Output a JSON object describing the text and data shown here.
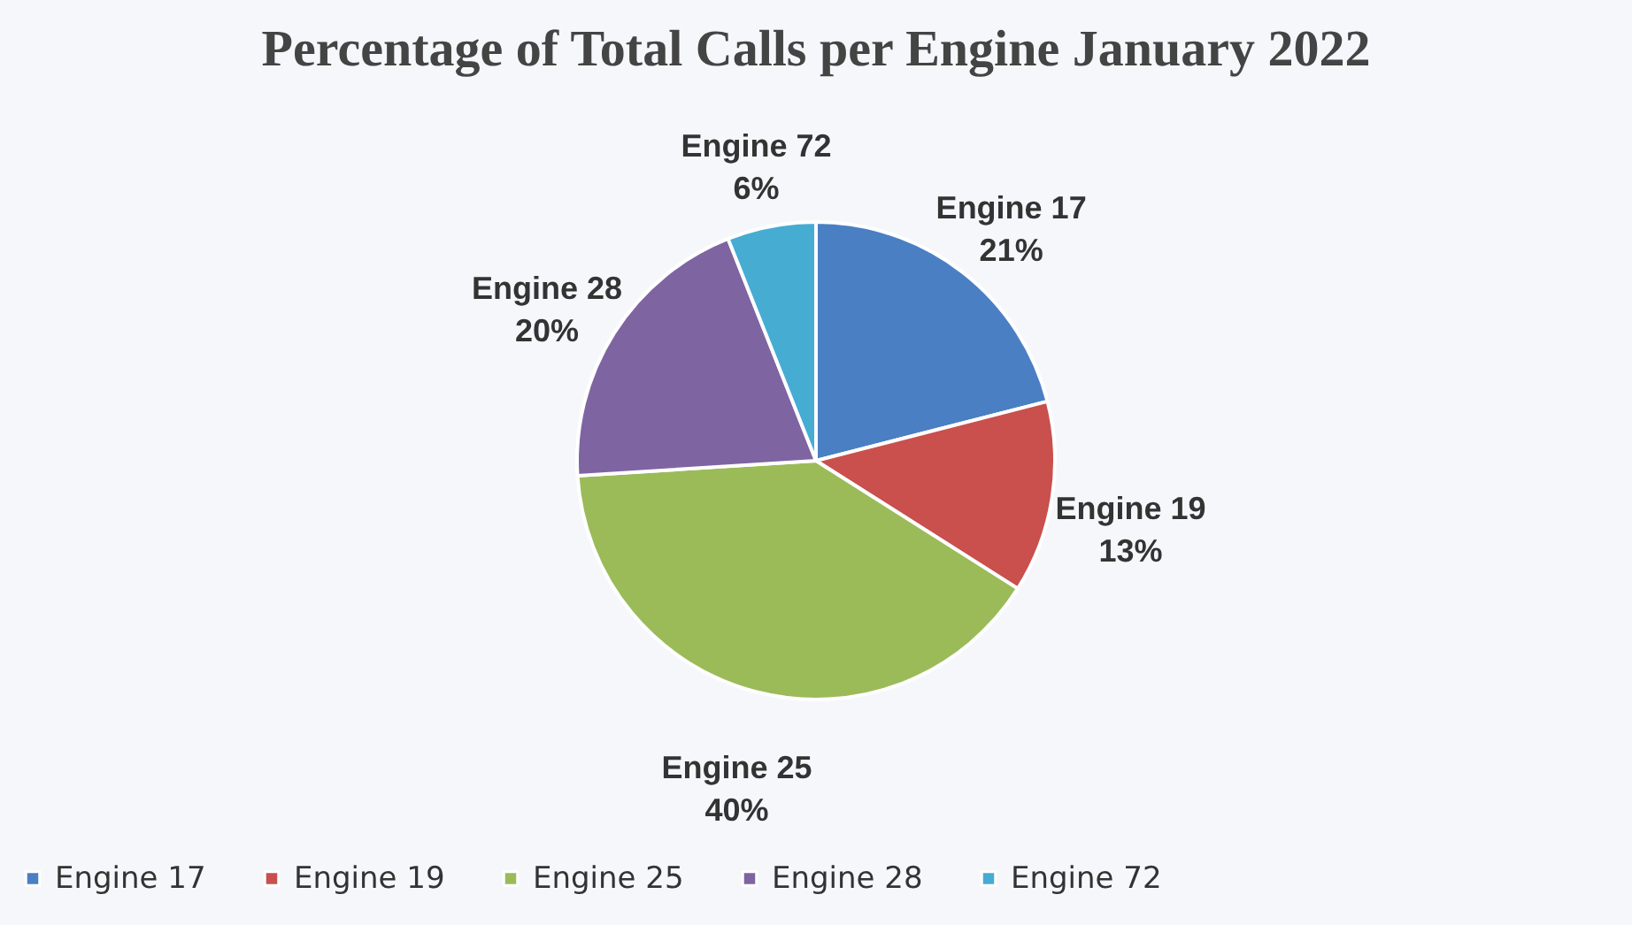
{
  "chart_data": {
    "type": "pie",
    "title": "Percentage of Total Calls per Engine January 2022",
    "categories": [
      "Engine 17",
      "Engine 19",
      "Engine 25",
      "Engine 28",
      "Engine 72"
    ],
    "values": [
      21,
      13,
      40,
      20,
      6
    ],
    "value_labels": [
      "21%",
      "13%",
      "40%",
      "20%",
      "6%"
    ],
    "colors": [
      "#4a7fc4",
      "#c9504d",
      "#9bbb59",
      "#7f64a2",
      "#46acd2"
    ],
    "legend": "bottom"
  }
}
